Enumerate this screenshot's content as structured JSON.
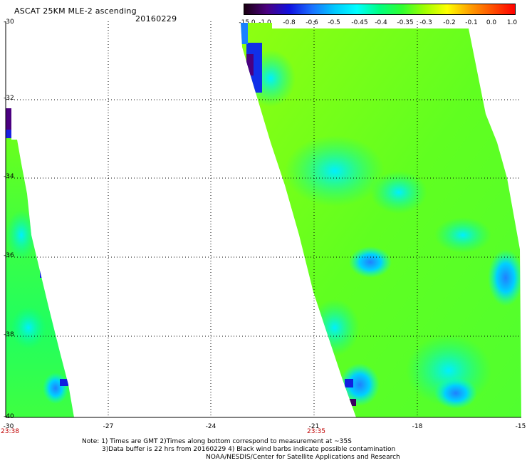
{
  "header": {
    "title": "ASCAT 25KM MLE-2 ascending",
    "date": "20160229"
  },
  "colorbar": {
    "labels": [
      "-15.0",
      "-1.0",
      "-0.8",
      "-0.6",
      "-0.5",
      "-0.45",
      "-0.4",
      "-0.35",
      "-0.3",
      "-0.2",
      "-0.1",
      "0.0",
      "1.0"
    ],
    "colors": [
      "#1a0010",
      "#4b0080",
      "#1010e0",
      "#1a70ff",
      "#00c8ff",
      "#00ffff",
      "#00ff80",
      "#30ff30",
      "#a0ff00",
      "#ffff00",
      "#ffa000",
      "#ff5000",
      "#ff0000"
    ]
  },
  "axes": {
    "lat_labels": [
      "-30",
      "-32",
      "-34",
      "-36",
      "-38",
      "-40"
    ],
    "lon_labels": [
      "-30",
      "-27",
      "-24",
      "-21",
      "-18",
      "-15"
    ]
  },
  "swath_times": [
    "23:38",
    "23:35"
  ],
  "notes": {
    "line1": "Note: 1) Times are GMT 2)Times along bottom correspond to measurement at ~35S",
    "line2": "3)Data buffer is 22 hrs from 20160229 4) Black wind barbs indicate possible contamination",
    "line3": "NOAA/NESDIS/Center for Satellite Applications and Research"
  }
}
